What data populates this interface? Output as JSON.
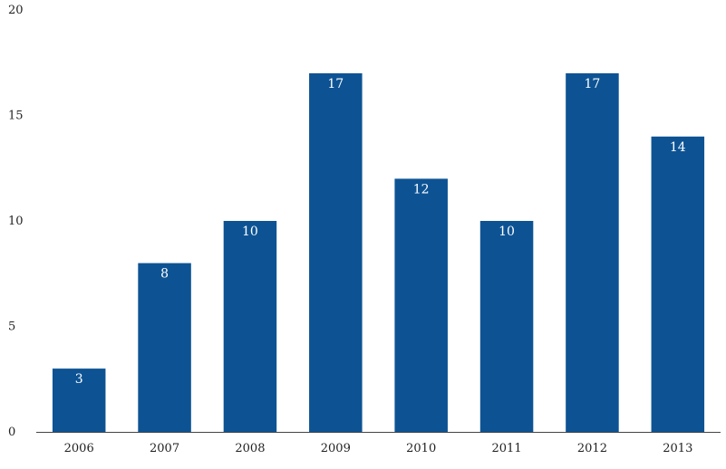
{
  "chart_data": {
    "type": "bar",
    "categories": [
      "2006",
      "2007",
      "2008",
      "2009",
      "2010",
      "2011",
      "2012",
      "2013"
    ],
    "values": [
      3,
      8,
      10,
      17,
      12,
      10,
      17,
      14
    ],
    "data_labels": [
      "3",
      "8",
      "10",
      "17",
      "12",
      "10",
      "17",
      "14"
    ],
    "title": "",
    "xlabel": "",
    "ylabel": "",
    "ylim": [
      0,
      20
    ],
    "yticks": [
      0,
      5,
      10,
      15,
      20
    ],
    "ytick_labels": [
      "0",
      "5",
      "10",
      "15",
      "20"
    ],
    "grid": false,
    "bar_color": "#0d5394"
  }
}
